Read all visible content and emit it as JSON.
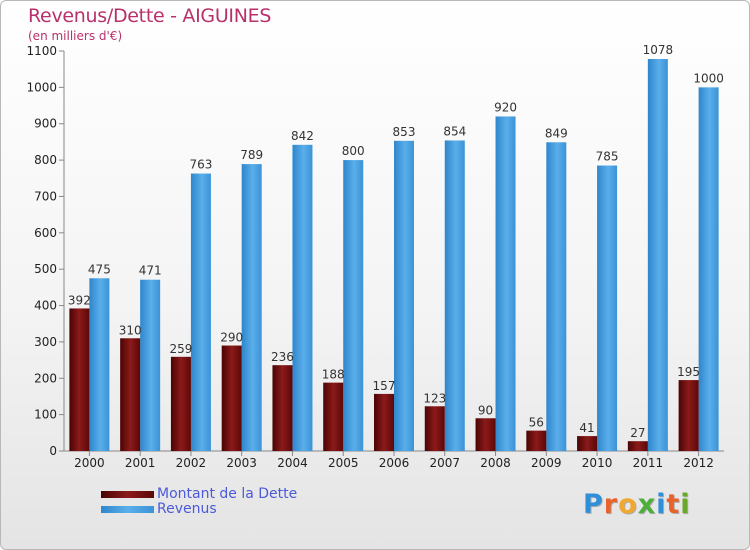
{
  "header": {
    "title": "Revenus/Dette - AIGUINES",
    "subtitle": "(en milliers d'€)"
  },
  "colors": {
    "title": "#b8316b",
    "dette": "#6e0a0a",
    "revenus": "#3d97dc",
    "legend_text": "#4a5ad8"
  },
  "chart_data": {
    "type": "bar",
    "categories": [
      "2000",
      "2001",
      "2002",
      "2003",
      "2004",
      "2005",
      "2006",
      "2007",
      "2008",
      "2009",
      "2010",
      "2011",
      "2012"
    ],
    "series": [
      {
        "name": "Montant de la Dette",
        "values": [
          392,
          310,
          259,
          290,
          236,
          188,
          157,
          123,
          90,
          56,
          41,
          27,
          195
        ]
      },
      {
        "name": "Revenus",
        "values": [
          475,
          471,
          763,
          789,
          842,
          800,
          853,
          854,
          920,
          849,
          785,
          1078,
          1000
        ]
      }
    ],
    "title": "Revenus/Dette - AIGUINES",
    "ylabel": "(en milliers d'€)",
    "ylim": [
      0,
      1100
    ],
    "yticks": [
      0,
      100,
      200,
      300,
      400,
      500,
      600,
      700,
      800,
      900,
      1000,
      1100
    ],
    "grid": false,
    "legend_position": "bottom-left"
  },
  "legend": {
    "items": [
      {
        "label": "Montant de la Dette",
        "color": "#6e0a0a"
      },
      {
        "label": "Revenus",
        "color": "#3d97dc"
      }
    ]
  },
  "logo": {
    "letters": [
      "P",
      "r",
      "o",
      "x",
      "i",
      "t",
      "i"
    ],
    "colors": [
      "#2f8fd8",
      "#e8632c",
      "#f0a830",
      "#4caf3a",
      "#2f8fd8",
      "#e8632c",
      "#6aa82c"
    ]
  }
}
